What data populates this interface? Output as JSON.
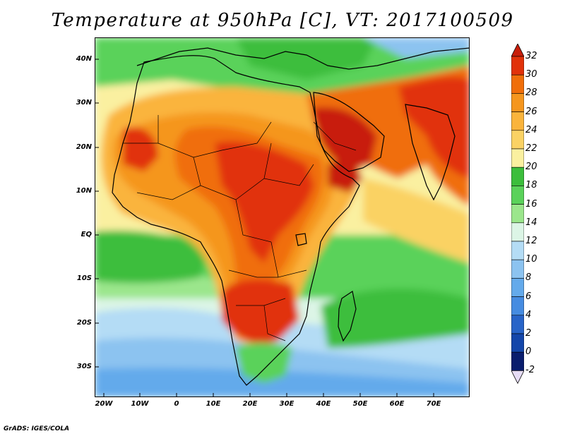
{
  "title": "Temperature at 950hPa [C], VT: 2017100509",
  "credit": "GrADS: IGES/COLA",
  "lat_labels": [
    "40N",
    "30N",
    "20N",
    "10N",
    "EQ",
    "10S",
    "20S",
    "30S"
  ],
  "lon_labels": [
    "20W",
    "10W",
    "0",
    "10E",
    "20E",
    "30E",
    "40E",
    "50E",
    "60E",
    "70E"
  ],
  "colorbar": {
    "labels": [
      "32",
      "30",
      "28",
      "26",
      "24",
      "22",
      "20",
      "18",
      "16",
      "14",
      "12",
      "10",
      "8",
      "6",
      "4",
      "2",
      "0",
      "-2"
    ],
    "colors": [
      "#c81e0a",
      "#e1320a",
      "#f06e0a",
      "#f5961e",
      "#fab43c",
      "#fad264",
      "#faf0a0",
      "#3cbe3c",
      "#5ad25a",
      "#9be68c",
      "#dcf5e6",
      "#b4dcf5",
      "#8cc3f0",
      "#64aaeb",
      "#468ce1",
      "#2864c8",
      "#1446aa",
      "#0a1e6e"
    ]
  }
}
